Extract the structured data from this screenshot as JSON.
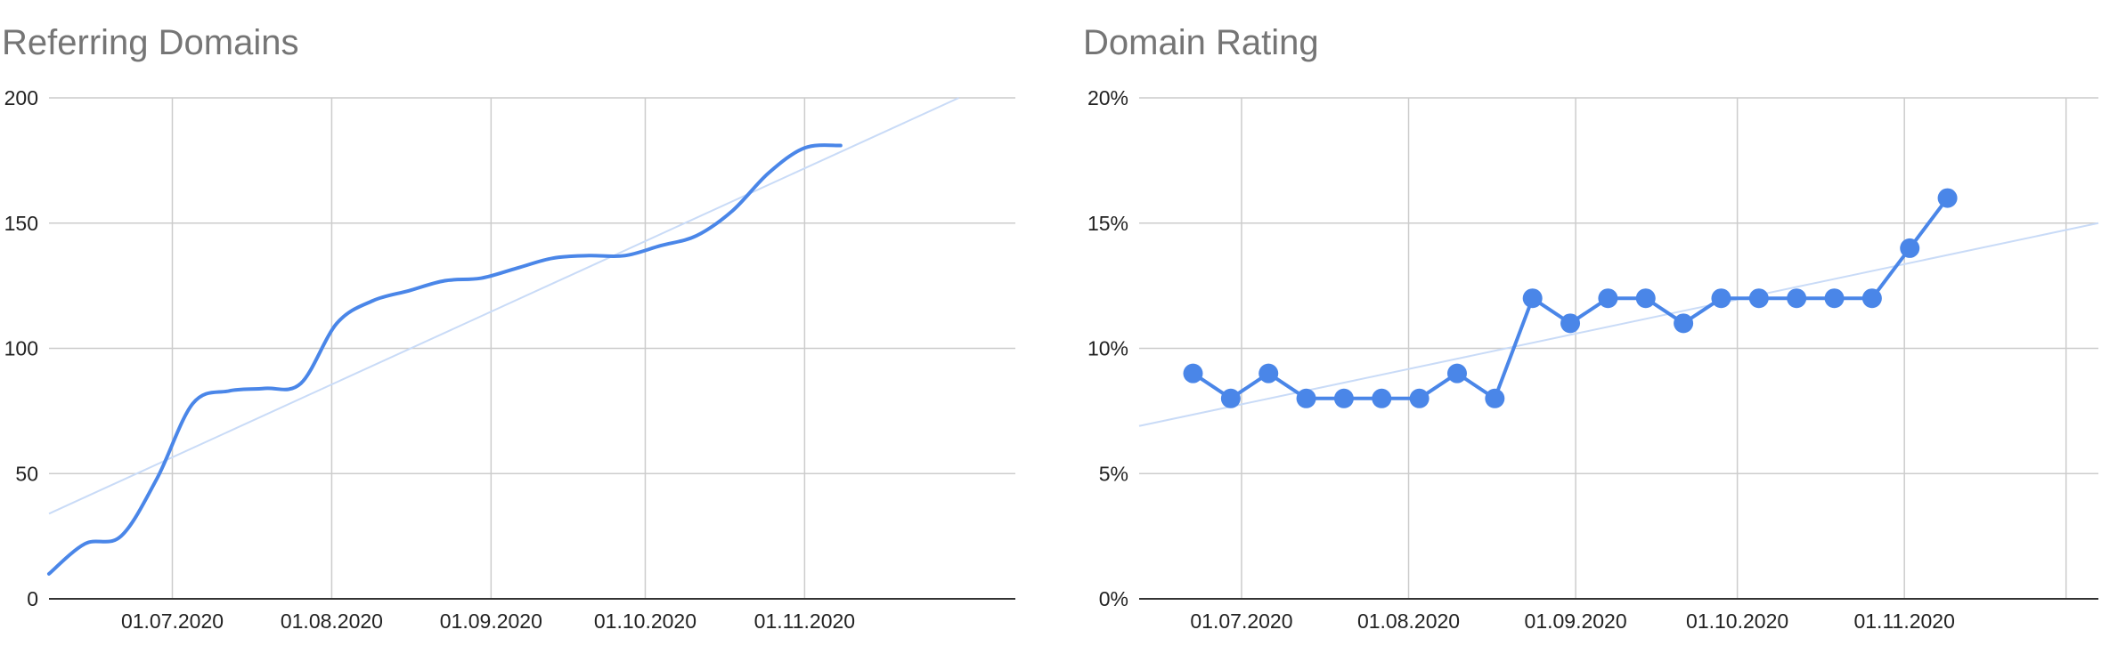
{
  "colors": {
    "series": "#4a86e8",
    "trend": "#c9dbf7",
    "grid": "#cccccc",
    "axis": "#333333",
    "title": "#757575"
  },
  "chart_data": [
    {
      "type": "line",
      "title": "Referring Domains",
      "ylim": [
        0,
        200
      ],
      "yticks": [
        "0",
        "50",
        "100",
        "150",
        "200"
      ],
      "xticks": [
        "01.07.2020",
        "01.08.2020",
        "01.09.2020",
        "01.10.2020",
        "01.11.2020"
      ],
      "xlim": [
        "2020-06-07",
        "2020-12-12"
      ],
      "grid": true,
      "trendline": {
        "x": [
          "2020-06-07",
          "2020-12-01"
        ],
        "y": [
          34,
          200
        ]
      },
      "series": [
        {
          "x": [
            "2020-06-07",
            "2020-06-14",
            "2020-06-21",
            "2020-06-28",
            "2020-07-05",
            "2020-07-12",
            "2020-07-19",
            "2020-07-26",
            "2020-08-02",
            "2020-08-09",
            "2020-08-16",
            "2020-08-23",
            "2020-08-30",
            "2020-09-06",
            "2020-09-13",
            "2020-09-20",
            "2020-09-27",
            "2020-10-04",
            "2020-10-11",
            "2020-10-18",
            "2020-10-25",
            "2020-11-01",
            "2020-11-08"
          ],
          "y": [
            10,
            22,
            25,
            48,
            78,
            83,
            84,
            86,
            110,
            119,
            123,
            127,
            128,
            132,
            136,
            137,
            137,
            141,
            145,
            155,
            170,
            180,
            181
          ]
        }
      ]
    },
    {
      "type": "line",
      "title": "Domain Rating",
      "ylim": [
        0,
        20
      ],
      "yticks": [
        "0%",
        "5%",
        "10%",
        "15%",
        "20%"
      ],
      "xticks": [
        "01.07.2020",
        "01.08.2020",
        "01.09.2020",
        "01.10.2020",
        "01.11.2020"
      ],
      "xlim": [
        "2020-06-12",
        "2020-12-07"
      ],
      "grid": true,
      "trendline": {
        "x": [
          "2020-06-12",
          "2020-12-07"
        ],
        "y": [
          6.9,
          15
        ]
      },
      "series": [
        {
          "markers": true,
          "x": [
            "2020-06-22",
            "2020-06-29",
            "2020-07-06",
            "2020-07-13",
            "2020-07-20",
            "2020-07-27",
            "2020-08-03",
            "2020-08-10",
            "2020-08-17",
            "2020-08-24",
            "2020-08-31",
            "2020-09-07",
            "2020-09-14",
            "2020-09-21",
            "2020-09-28",
            "2020-10-05",
            "2020-10-12",
            "2020-10-19",
            "2020-10-26",
            "2020-11-02",
            "2020-11-09"
          ],
          "y": [
            9,
            8,
            9,
            8,
            8,
            8,
            8,
            9,
            8,
            12,
            11,
            12,
            12,
            11,
            12,
            12,
            12,
            12,
            12,
            14,
            16
          ]
        }
      ]
    }
  ]
}
